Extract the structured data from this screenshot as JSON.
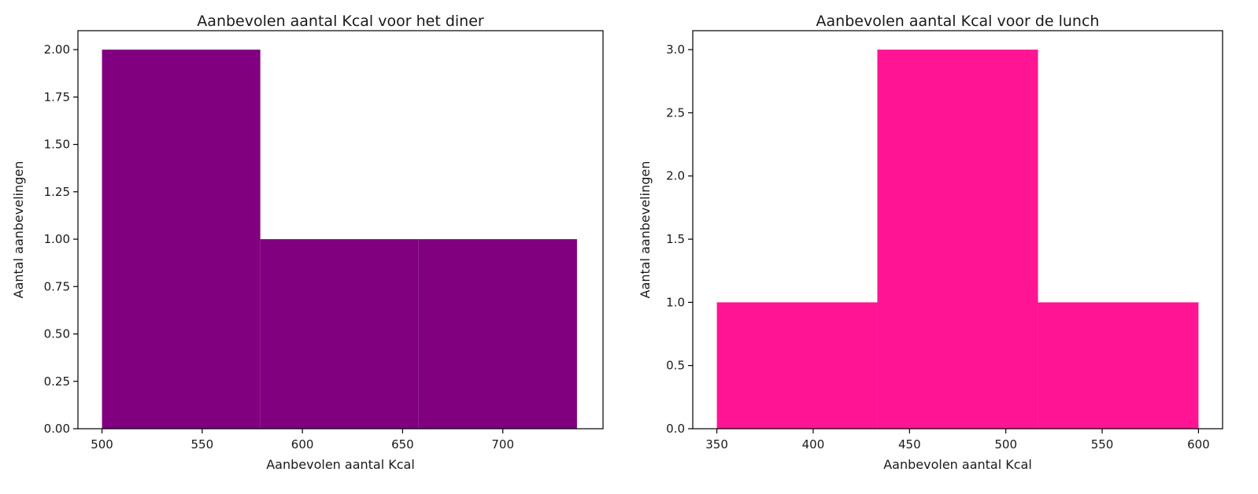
{
  "chart_data": [
    {
      "type": "bar",
      "title": "Aanbevolen aantal Kcal voor het diner",
      "xlabel": "Aanbevolen aantal Kcal",
      "ylabel": "Aantal aanbevelingen",
      "bin_edges": [
        500,
        579,
        658,
        737
      ],
      "values": [
        2,
        1,
        1
      ],
      "xlim": [
        488,
        750
      ],
      "ylim": [
        0,
        2.1
      ],
      "xticks": [
        500,
        550,
        600,
        650,
        700
      ],
      "xtick_labels": [
        "500",
        "550",
        "600",
        "650",
        "700"
      ],
      "yticks": [
        0,
        0.25,
        0.5,
        0.75,
        1.0,
        1.25,
        1.5,
        1.75,
        2.0
      ],
      "ytick_labels": [
        "0.00",
        "0.25",
        "0.50",
        "0.75",
        "1.00",
        "1.25",
        "1.50",
        "1.75",
        "2.00"
      ],
      "color": "#800080",
      "grid": false
    },
    {
      "type": "bar",
      "title": "Aanbevolen aantal Kcal voor de lunch",
      "xlabel": "Aanbevolen aantal Kcal",
      "ylabel": "Aantal aanbevelingen",
      "bin_edges": [
        350,
        433.3,
        516.7,
        600
      ],
      "values": [
        1,
        3,
        1
      ],
      "xlim": [
        337.5,
        612.5
      ],
      "ylim": [
        0,
        3.15
      ],
      "xticks": [
        350,
        400,
        450,
        500,
        550,
        600
      ],
      "xtick_labels": [
        "350",
        "400",
        "450",
        "500",
        "550",
        "600"
      ],
      "yticks": [
        0,
        0.5,
        1.0,
        1.5,
        2.0,
        2.5,
        3.0
      ],
      "ytick_labels": [
        "0.0",
        "0.5",
        "1.0",
        "1.5",
        "2.0",
        "2.5",
        "3.0"
      ],
      "color": "#ff1493",
      "grid": false
    }
  ]
}
